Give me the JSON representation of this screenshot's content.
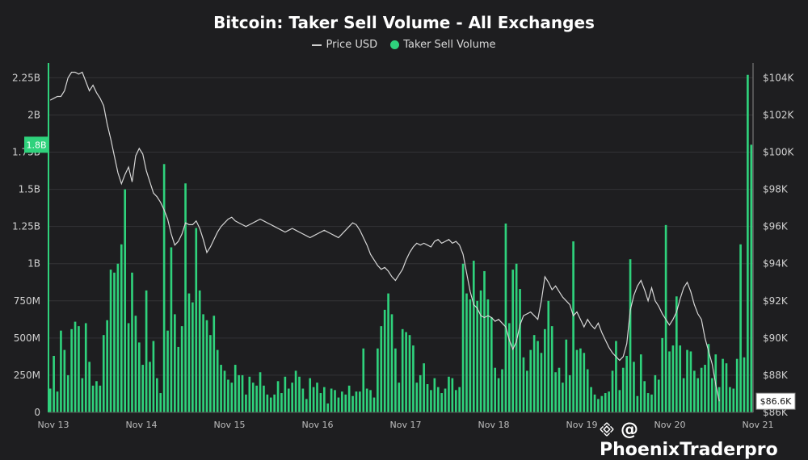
{
  "title": "Bitcoin: Taker Sell Volume - All Exchanges",
  "legend": {
    "price_label": "Price USD",
    "volume_label": "Taker Sell Volume"
  },
  "colors": {
    "bar": "#2fd27c",
    "price_line": "#d6d6d6",
    "background": "#1e1e20",
    "grid": "#333336"
  },
  "watermark": {
    "text": "@ PhoenixTraderpro",
    "icon": "binance-square-icon"
  },
  "chart_data": {
    "type": "bar",
    "x_labels": [
      "Nov 13",
      "Nov 14",
      "Nov 15",
      "Nov 16",
      "Nov 17",
      "Nov 18",
      "Nov 19",
      "Nov 20",
      "Nov 21"
    ],
    "y_left_ticks": [
      "0",
      "250M",
      "500M",
      "750M",
      "1B",
      "1.25B",
      "1.5B",
      "1.75B",
      "2B",
      "2.25B"
    ],
    "y_left_range": [
      0,
      2350000000
    ],
    "y_right_ticks": [
      "$86K",
      "$88K",
      "$90K",
      "$92K",
      "$94K",
      "$96K",
      "$98K",
      "$100K",
      "$102K",
      "$104K"
    ],
    "y_right_range": [
      86000,
      104800
    ],
    "current_volume_badge": "1.8B",
    "current_price_badge": "$86.6K",
    "grid": true,
    "legend_position": "top-center",
    "series": [
      {
        "name": "Taker Sell Volume",
        "unit": "USD",
        "values": [
          160000000,
          380000000,
          140000000,
          550000000,
          420000000,
          250000000,
          560000000,
          610000000,
          580000000,
          230000000,
          600000000,
          340000000,
          180000000,
          210000000,
          180000000,
          520000000,
          620000000,
          960000000,
          940000000,
          1000000000,
          1130000000,
          1500000000,
          600000000,
          940000000,
          650000000,
          470000000,
          320000000,
          820000000,
          340000000,
          480000000,
          230000000,
          130000000,
          1670000000,
          550000000,
          1110000000,
          660000000,
          440000000,
          580000000,
          1540000000,
          800000000,
          740000000,
          1240000000,
          820000000,
          660000000,
          620000000,
          520000000,
          650000000,
          420000000,
          320000000,
          280000000,
          220000000,
          200000000,
          320000000,
          250000000,
          250000000,
          120000000,
          240000000,
          200000000,
          180000000,
          270000000,
          180000000,
          120000000,
          100000000,
          120000000,
          210000000,
          130000000,
          240000000,
          160000000,
          200000000,
          280000000,
          240000000,
          160000000,
          90000000,
          230000000,
          170000000,
          200000000,
          130000000,
          170000000,
          60000000,
          160000000,
          150000000,
          100000000,
          140000000,
          120000000,
          180000000,
          110000000,
          140000000,
          140000000,
          430000000,
          160000000,
          150000000,
          100000000,
          430000000,
          580000000,
          690000000,
          800000000,
          660000000,
          430000000,
          200000000,
          560000000,
          540000000,
          520000000,
          450000000,
          200000000,
          250000000,
          330000000,
          190000000,
          150000000,
          230000000,
          170000000,
          130000000,
          160000000,
          240000000,
          230000000,
          150000000,
          170000000,
          1000000000,
          800000000,
          760000000,
          1020000000,
          750000000,
          820000000,
          950000000,
          760000000,
          640000000,
          300000000,
          230000000,
          290000000,
          1270000000,
          600000000,
          960000000,
          1000000000,
          830000000,
          370000000,
          280000000,
          420000000,
          520000000,
          480000000,
          400000000,
          560000000,
          750000000,
          580000000,
          270000000,
          300000000,
          200000000,
          490000000,
          250000000,
          1150000000,
          420000000,
          430000000,
          400000000,
          290000000,
          170000000,
          120000000,
          90000000,
          110000000,
          130000000,
          140000000,
          280000000,
          480000000,
          150000000,
          300000000,
          380000000,
          1030000000,
          340000000,
          110000000,
          390000000,
          210000000,
          130000000,
          120000000,
          250000000,
          220000000,
          500000000,
          1260000000,
          410000000,
          450000000,
          780000000,
          450000000,
          230000000,
          420000000,
          410000000,
          280000000,
          230000000,
          300000000,
          320000000,
          460000000,
          230000000,
          390000000,
          170000000,
          360000000,
          330000000,
          170000000,
          160000000,
          360000000,
          1130000000,
          370000000,
          2270000000,
          1800000000
        ]
      },
      {
        "name": "Price USD",
        "unit": "USD",
        "values": [
          102800,
          102900,
          103000,
          103000,
          103300,
          104000,
          104300,
          104300,
          104200,
          104300,
          103800,
          103300,
          103600,
          103200,
          102900,
          102500,
          101500,
          100700,
          99800,
          98900,
          98300,
          98800,
          99200,
          98400,
          99800,
          100200,
          99900,
          99000,
          98400,
          97800,
          97600,
          97300,
          96900,
          96400,
          95600,
          95000,
          95200,
          95600,
          96200,
          96100,
          96100,
          96300,
          95900,
          95300,
          94600,
          94900,
          95300,
          95700,
          96000,
          96200,
          96400,
          96500,
          96300,
          96200,
          96100,
          96000,
          96100,
          96200,
          96300,
          96400,
          96300,
          96200,
          96100,
          96000,
          95900,
          95800,
          95700,
          95800,
          95900,
          95800,
          95700,
          95600,
          95500,
          95400,
          95500,
          95600,
          95700,
          95800,
          95700,
          95600,
          95500,
          95400,
          95600,
          95800,
          96000,
          96200,
          96100,
          95800,
          95400,
          95000,
          94500,
          94200,
          93900,
          93700,
          93800,
          93600,
          93300,
          93100,
          93400,
          93700,
          94200,
          94600,
          94900,
          95100,
          95000,
          95100,
          95000,
          94900,
          95200,
          95300,
          95100,
          95200,
          95300,
          95100,
          95200,
          95000,
          94500,
          93500,
          92500,
          91800,
          91600,
          91200,
          91100,
          91200,
          91100,
          90900,
          91000,
          90800,
          90600,
          89900,
          89400,
          89800,
          90700,
          91200,
          91300,
          91400,
          91200,
          91000,
          92000,
          93300,
          93000,
          92600,
          92800,
          92500,
          92200,
          92000,
          91800,
          91200,
          91400,
          91000,
          90600,
          91000,
          90700,
          90500,
          90800,
          90300,
          89900,
          89500,
          89200,
          89000,
          88800,
          89000,
          89700,
          91500,
          92300,
          92800,
          93100,
          92600,
          92000,
          92700,
          92000,
          91700,
          91300,
          91000,
          90700,
          91000,
          91400,
          92100,
          92700,
          93000,
          92500,
          91800,
          91300,
          91000,
          90000,
          89300,
          88600,
          87500,
          86600
        ]
      }
    ]
  }
}
